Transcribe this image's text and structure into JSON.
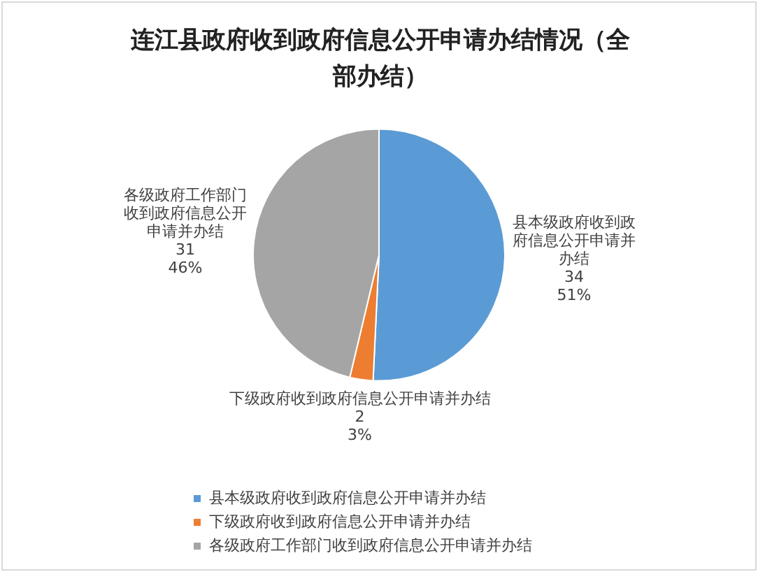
{
  "chart_data": {
    "type": "pie",
    "title": "连江县政府收到政府信息公开申请办结情况（全部办结）",
    "categories": [
      "县本级政府收到政府信息公开申请并办结",
      "下级政府收到政府信息公开申请并办结",
      "各级政府工作部门收到政府信息公开申请并办结"
    ],
    "values": [
      34,
      2,
      31
    ],
    "colors": [
      "#5b9bd5",
      "#ed7d31",
      "#a5a5a5"
    ],
    "value_labels": [
      "34\n51%",
      "2\n3%",
      "31\n46%"
    ],
    "legend": "bottom"
  }
}
